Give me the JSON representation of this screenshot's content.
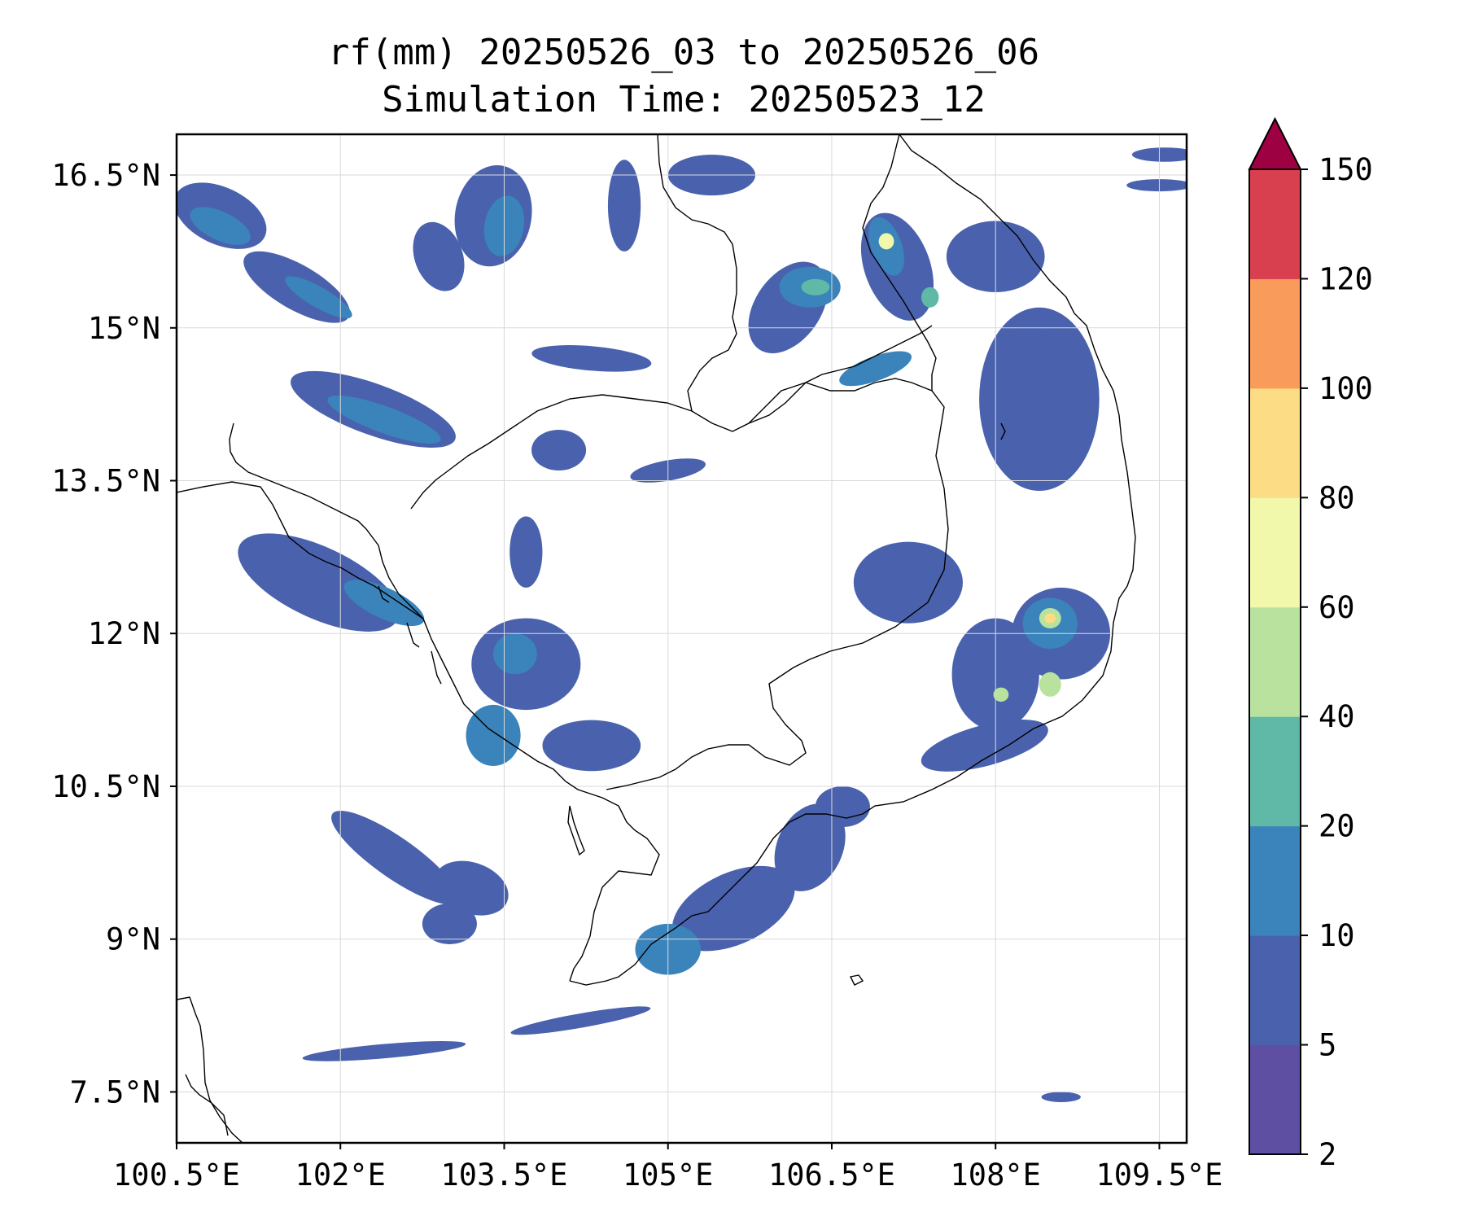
{
  "title": {
    "line1": "rf(mm) 20250526_03 to 20250526_06",
    "line2": "Simulation Time: 20250523_12"
  },
  "map": {
    "lon_range": [
      100.5,
      109.75
    ],
    "lat_range": [
      7.0,
      16.9
    ],
    "lon_ticks": [
      {
        "value": 100.5,
        "label": "100.5°E"
      },
      {
        "value": 102.0,
        "label": "102°E"
      },
      {
        "value": 103.5,
        "label": "103.5°E"
      },
      {
        "value": 105.0,
        "label": "105°E"
      },
      {
        "value": 106.5,
        "label": "106.5°E"
      },
      {
        "value": 108.0,
        "label": "108°E"
      },
      {
        "value": 109.5,
        "label": "109.5°E"
      }
    ],
    "lat_ticks": [
      {
        "value": 16.5,
        "label": "16.5°N"
      },
      {
        "value": 15.0,
        "label": "15°N"
      },
      {
        "value": 13.5,
        "label": "13.5°N"
      },
      {
        "value": 12.0,
        "label": "12°N"
      },
      {
        "value": 10.5,
        "label": "10.5°N"
      },
      {
        "value": 9.0,
        "label": "9°N"
      },
      {
        "value": 7.5,
        "label": "7.5°N"
      }
    ],
    "grid": true
  },
  "colorbar": {
    "extend": "max",
    "extend_color": "#9e0142",
    "levels": [
      {
        "label": "2",
        "color": "#5e4fa2"
      },
      {
        "label": "5",
        "color": "#4a62ad"
      },
      {
        "label": "10",
        "color": "#3a84bb"
      },
      {
        "label": "20",
        "color": "#5fb9a6"
      },
      {
        "label": "40",
        "color": "#b9e29f"
      },
      {
        "label": "60",
        "color": "#f1f8ab"
      },
      {
        "label": "80",
        "color": "#fddc86"
      },
      {
        "label": "100",
        "color": "#f99b5b"
      },
      {
        "label": "120",
        "color": "#d9404f"
      },
      {
        "label": "150",
        "color": ""
      }
    ]
  },
  "rain_areas": [
    {
      "lon": 100.9,
      "lat": 16.1,
      "rx": 0.45,
      "ry": 0.28,
      "rot": 25,
      "level": 1
    },
    {
      "lon": 100.9,
      "lat": 16.0,
      "rx": 0.3,
      "ry": 0.14,
      "rot": 25,
      "level": 2
    },
    {
      "lon": 101.6,
      "lat": 15.4,
      "rx": 0.55,
      "ry": 0.22,
      "rot": 30,
      "level": 1
    },
    {
      "lon": 101.8,
      "lat": 15.3,
      "rx": 0.35,
      "ry": 0.1,
      "rot": 30,
      "level": 2
    },
    {
      "lon": 102.3,
      "lat": 14.2,
      "rx": 0.8,
      "ry": 0.25,
      "rot": 20,
      "level": 1
    },
    {
      "lon": 102.4,
      "lat": 14.1,
      "rx": 0.55,
      "ry": 0.13,
      "rot": 20,
      "level": 2
    },
    {
      "lon": 103.4,
      "lat": 16.1,
      "rx": 0.35,
      "ry": 0.5,
      "rot": 10,
      "level": 1
    },
    {
      "lon": 103.5,
      "lat": 16.0,
      "rx": 0.18,
      "ry": 0.3,
      "rot": 10,
      "level": 2
    },
    {
      "lon": 104.3,
      "lat": 14.7,
      "rx": 0.55,
      "ry": 0.12,
      "rot": 5,
      "level": 1
    },
    {
      "lon": 102.9,
      "lat": 15.7,
      "rx": 0.22,
      "ry": 0.35,
      "rot": -20,
      "level": 1
    },
    {
      "lon": 104.6,
      "lat": 16.2,
      "rx": 0.15,
      "ry": 0.45,
      "rot": 0,
      "level": 1
    },
    {
      "lon": 105.4,
      "lat": 16.5,
      "rx": 0.4,
      "ry": 0.2,
      "rot": 0,
      "level": 1
    },
    {
      "lon": 106.1,
      "lat": 15.2,
      "rx": 0.3,
      "ry": 0.5,
      "rot": 35,
      "level": 1
    },
    {
      "lon": 106.3,
      "lat": 15.4,
      "rx": 0.28,
      "ry": 0.2,
      "rot": 0,
      "level": 2
    },
    {
      "lon": 106.35,
      "lat": 15.4,
      "rx": 0.13,
      "ry": 0.08,
      "rot": 0,
      "level": 3
    },
    {
      "lon": 107.1,
      "lat": 15.6,
      "rx": 0.3,
      "ry": 0.55,
      "rot": -20,
      "level": 1
    },
    {
      "lon": 107.0,
      "lat": 15.8,
      "rx": 0.14,
      "ry": 0.3,
      "rot": -20,
      "level": 2
    },
    {
      "lon": 107.0,
      "lat": 15.85,
      "rx": 0.07,
      "ry": 0.08,
      "rot": 0,
      "level": 5
    },
    {
      "lon": 107.4,
      "lat": 15.3,
      "rx": 0.08,
      "ry": 0.1,
      "rot": 0,
      "level": 3
    },
    {
      "lon": 106.9,
      "lat": 14.6,
      "rx": 0.35,
      "ry": 0.12,
      "rot": -20,
      "level": 2
    },
    {
      "lon": 108.4,
      "lat": 14.3,
      "rx": 0.55,
      "ry": 0.9,
      "rot": 0,
      "level": 1
    },
    {
      "lon": 108.3,
      "lat": 14.6,
      "rx": 0.3,
      "ry": 0.4,
      "rot": 0,
      "level": 1
    },
    {
      "lon": 108.0,
      "lat": 15.7,
      "rx": 0.45,
      "ry": 0.35,
      "rot": 0,
      "level": 1
    },
    {
      "lon": 108.6,
      "lat": 12.0,
      "rx": 0.45,
      "ry": 0.45,
      "rot": 0,
      "level": 1
    },
    {
      "lon": 108.5,
      "lat": 12.1,
      "rx": 0.25,
      "ry": 0.25,
      "rot": 0,
      "level": 2
    },
    {
      "lon": 108.5,
      "lat": 12.15,
      "rx": 0.1,
      "ry": 0.1,
      "rot": 0,
      "level": 4
    },
    {
      "lon": 108.5,
      "lat": 12.15,
      "rx": 0.05,
      "ry": 0.05,
      "rot": 0,
      "level": 6
    },
    {
      "lon": 108.5,
      "lat": 11.5,
      "rx": 0.1,
      "ry": 0.12,
      "rot": 0,
      "level": 4
    },
    {
      "lon": 108.05,
      "lat": 11.4,
      "rx": 0.07,
      "ry": 0.07,
      "rot": 0,
      "level": 4
    },
    {
      "lon": 108.0,
      "lat": 11.6,
      "rx": 0.4,
      "ry": 0.55,
      "rot": 0,
      "level": 1
    },
    {
      "lon": 107.2,
      "lat": 12.5,
      "rx": 0.5,
      "ry": 0.4,
      "rot": 0,
      "level": 1
    },
    {
      "lon": 107.9,
      "lat": 10.9,
      "rx": 0.6,
      "ry": 0.2,
      "rot": -15,
      "level": 1
    },
    {
      "lon": 103.7,
      "lat": 11.7,
      "rx": 0.5,
      "ry": 0.45,
      "rot": 0,
      "level": 1
    },
    {
      "lon": 103.6,
      "lat": 11.8,
      "rx": 0.2,
      "ry": 0.2,
      "rot": 0,
      "level": 2
    },
    {
      "lon": 103.4,
      "lat": 11.0,
      "rx": 0.25,
      "ry": 0.3,
      "rot": 0,
      "level": 2
    },
    {
      "lon": 104.3,
      "lat": 10.9,
      "rx": 0.45,
      "ry": 0.25,
      "rot": 0,
      "level": 1
    },
    {
      "lon": 101.8,
      "lat": 12.5,
      "rx": 0.8,
      "ry": 0.35,
      "rot": 25,
      "level": 1
    },
    {
      "lon": 102.4,
      "lat": 12.3,
      "rx": 0.4,
      "ry": 0.15,
      "rot": 25,
      "level": 2
    },
    {
      "lon": 102.5,
      "lat": 9.8,
      "rx": 0.7,
      "ry": 0.2,
      "rot": 35,
      "level": 1
    },
    {
      "lon": 103.2,
      "lat": 9.5,
      "rx": 0.35,
      "ry": 0.25,
      "rot": 20,
      "level": 1
    },
    {
      "lon": 105.6,
      "lat": 9.3,
      "rx": 0.6,
      "ry": 0.35,
      "rot": -25,
      "level": 1
    },
    {
      "lon": 105.0,
      "lat": 8.9,
      "rx": 0.3,
      "ry": 0.25,
      "rot": 0,
      "level": 2
    },
    {
      "lon": 106.3,
      "lat": 9.9,
      "rx": 0.3,
      "ry": 0.45,
      "rot": 25,
      "level": 1
    },
    {
      "lon": 106.6,
      "lat": 10.3,
      "rx": 0.25,
      "ry": 0.2,
      "rot": 0,
      "level": 1
    },
    {
      "lon": 102.4,
      "lat": 7.9,
      "rx": 0.75,
      "ry": 0.07,
      "rot": -5,
      "level": 1
    },
    {
      "lon": 104.2,
      "lat": 8.2,
      "rx": 0.65,
      "ry": 0.07,
      "rot": -10,
      "level": 1
    },
    {
      "lon": 103.0,
      "lat": 9.15,
      "rx": 0.25,
      "ry": 0.2,
      "rot": 0,
      "level": 1
    },
    {
      "lon": 108.6,
      "lat": 7.45,
      "rx": 0.18,
      "ry": 0.05,
      "rot": 0,
      "level": 1
    },
    {
      "lon": 109.55,
      "lat": 16.7,
      "rx": 0.3,
      "ry": 0.07,
      "rot": 0,
      "level": 1
    },
    {
      "lon": 109.5,
      "lat": 16.4,
      "rx": 0.3,
      "ry": 0.06,
      "rot": 0,
      "level": 1
    },
    {
      "lon": 105.0,
      "lat": 13.6,
      "rx": 0.35,
      "ry": 0.1,
      "rot": -10,
      "level": 1
    },
    {
      "lon": 104.0,
      "lat": 13.8,
      "rx": 0.25,
      "ry": 0.2,
      "rot": 0,
      "level": 1
    },
    {
      "lon": 103.7,
      "lat": 12.8,
      "rx": 0.15,
      "ry": 0.35,
      "rot": 0,
      "level": 1
    }
  ]
}
